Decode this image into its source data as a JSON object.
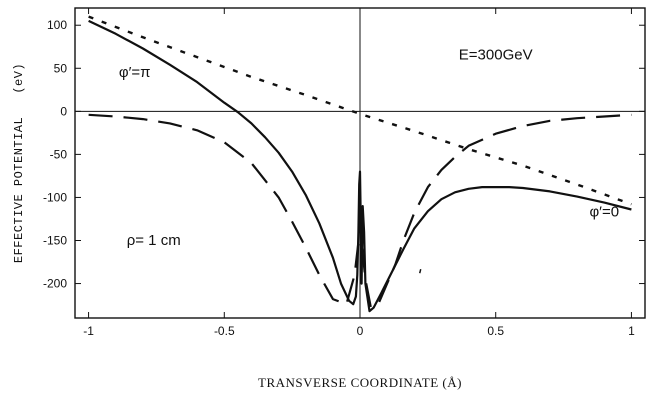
{
  "chart_data": {
    "type": "line",
    "title": "",
    "xlabel": "TRANSVERSE COORDINATE (Å)",
    "ylabel": "EFFECTIVE POTENTIAL   (eV)",
    "xlim": [
      -1.05,
      1.05
    ],
    "ylim": [
      -240,
      120
    ],
    "xticks": [
      -1,
      -0.5,
      0,
      0.5,
      1
    ],
    "xtick_labels": [
      "-1",
      "-0.5",
      "0",
      "0.5",
      "1"
    ],
    "yticks": [
      100,
      50,
      0,
      -50,
      -100,
      -150,
      -200
    ],
    "ytick_labels": [
      "100",
      "50",
      "0",
      "-50",
      "-100",
      "-150",
      "-200"
    ],
    "grid": false,
    "reference_lines": {
      "x": 0,
      "y": 0
    },
    "annotations": [
      {
        "text": "E=300GeV",
        "x": 0.5,
        "y": 60
      },
      {
        "text": "φ′=π",
        "x": -0.83,
        "y": 40
      },
      {
        "text": "φ′=0",
        "x": 0.9,
        "y": -122
      },
      {
        "text": "ρ=   1 cm",
        "x": -0.76,
        "y": -155
      }
    ],
    "series": [
      {
        "style": "solid",
        "x": [
          -1,
          -0.9,
          -0.8,
          -0.7,
          -0.6,
          -0.5,
          -0.45,
          -0.4,
          -0.35,
          -0.3,
          -0.25,
          -0.2,
          -0.15,
          -0.1,
          -0.07,
          -0.04,
          -0.025,
          -0.015,
          -0.01,
          -0.006,
          -0.003,
          0,
          0.003,
          0.006,
          0.01,
          0.015,
          0.02,
          0.035,
          0.05,
          0.08,
          0.12,
          0.16,
          0.2,
          0.25,
          0.3,
          0.35,
          0.4,
          0.45,
          0.5,
          0.55,
          0.6,
          0.7,
          0.8,
          0.9,
          1
        ],
        "y": [
          105,
          90,
          73,
          54,
          34,
          10,
          -1,
          -14,
          -30,
          -48,
          -70,
          -97,
          -130,
          -170,
          -200,
          -220,
          -224,
          -215,
          -190,
          -140,
          -85,
          -70,
          -130,
          -200,
          -110,
          -140,
          -200,
          -232,
          -228,
          -210,
          -185,
          -160,
          -136,
          -116,
          -102,
          -94,
          -90,
          -88,
          -88,
          -88,
          -89,
          -93,
          -99,
          -106,
          -114
        ]
      },
      {
        "style": "short-dash",
        "x": [
          -1,
          -0.8,
          -0.6,
          -0.4,
          -0.2,
          0,
          0.2,
          0.4,
          0.6,
          0.8,
          1
        ],
        "y": [
          110,
          86,
          63,
          40,
          19,
          -3,
          -23,
          -44,
          -63,
          -85,
          -108
        ]
      },
      {
        "style": "long-dash",
        "x": [
          -1,
          -0.9,
          -0.8,
          -0.7,
          -0.6,
          -0.5,
          -0.4,
          -0.3,
          -0.25,
          -0.2,
          -0.15,
          -0.1,
          -0.05,
          -0.02,
          -0.005,
          0,
          0.005,
          0.02,
          0.04,
          0.07,
          0.1,
          0.13,
          0.16,
          0.2,
          0.25,
          0.3,
          0.35,
          0.4,
          0.5,
          0.6,
          0.7,
          0.8,
          0.9,
          1
        ],
        "y": [
          -4,
          -6,
          -9,
          -14,
          -22,
          -36,
          -60,
          -100,
          -128,
          -158,
          -190,
          -218,
          -224,
          -190,
          -150,
          -130,
          -150,
          -195,
          -228,
          -222,
          -200,
          -178,
          -150,
          -118,
          -88,
          -68,
          -53,
          -40,
          -26,
          -17,
          -11,
          -8,
          -6,
          -4
        ]
      }
    ],
    "stray_marks": [
      {
        "x": 0.22,
        "y": -188
      }
    ]
  }
}
